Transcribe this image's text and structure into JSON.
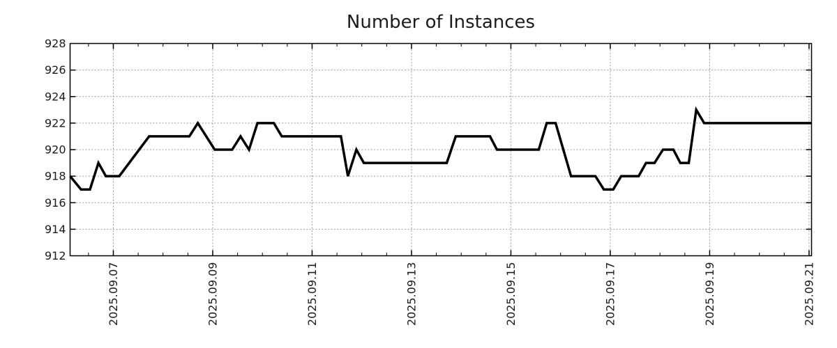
{
  "chart_data": {
    "type": "line",
    "title": "Number of Instances",
    "legend": "none",
    "grid": {
      "show": true,
      "color": "#9a9a9a",
      "style": "dashed"
    },
    "line_color": "#000000",
    "line_width": 3.5,
    "x_axis": {
      "unit": "date (day of 2025.09, fractional)",
      "range": [
        6.13,
        21.05
      ],
      "minor_tick_step": 0.5,
      "major_ticks": [
        {
          "value": 7,
          "label": "2025.09.07"
        },
        {
          "value": 9,
          "label": "2025.09.09"
        },
        {
          "value": 11,
          "label": "2025.09.11"
        },
        {
          "value": 13,
          "label": "2025.09.13"
        },
        {
          "value": 15,
          "label": "2025.09.15"
        },
        {
          "value": 17,
          "label": "2025.09.17"
        },
        {
          "value": 19,
          "label": "2025.09.19"
        },
        {
          "value": 21,
          "label": "2025.09.21"
        }
      ]
    },
    "y_axis": {
      "range": [
        912,
        928
      ],
      "major_ticks": [
        {
          "value": 912,
          "label": "912"
        },
        {
          "value": 914,
          "label": "914"
        },
        {
          "value": 916,
          "label": "916"
        },
        {
          "value": 918,
          "label": "918"
        },
        {
          "value": 920,
          "label": "920"
        },
        {
          "value": 922,
          "label": "922"
        },
        {
          "value": 924,
          "label": "924"
        },
        {
          "value": 926,
          "label": "926"
        },
        {
          "value": 928,
          "label": "928"
        }
      ]
    },
    "series": [
      {
        "name": "Number of Instances",
        "color": "#000000",
        "points": [
          [
            6.13,
            918
          ],
          [
            6.35,
            917
          ],
          [
            6.53,
            917
          ],
          [
            6.7,
            919
          ],
          [
            6.85,
            918
          ],
          [
            7.12,
            918
          ],
          [
            7.72,
            921
          ],
          [
            8.53,
            921
          ],
          [
            8.7,
            922
          ],
          [
            9.04,
            920
          ],
          [
            9.39,
            920
          ],
          [
            9.56,
            921
          ],
          [
            9.73,
            920
          ],
          [
            9.9,
            922
          ],
          [
            10.23,
            922
          ],
          [
            10.39,
            921
          ],
          [
            11.58,
            921
          ],
          [
            11.72,
            918
          ],
          [
            11.89,
            920
          ],
          [
            12.04,
            919
          ],
          [
            13.71,
            919
          ],
          [
            13.89,
            921
          ],
          [
            14.58,
            921
          ],
          [
            14.72,
            920
          ],
          [
            15.56,
            920
          ],
          [
            15.72,
            922
          ],
          [
            15.9,
            922
          ],
          [
            16.21,
            918
          ],
          [
            16.7,
            918
          ],
          [
            16.87,
            917
          ],
          [
            17.06,
            917
          ],
          [
            17.22,
            918
          ],
          [
            17.57,
            918
          ],
          [
            17.72,
            919
          ],
          [
            17.89,
            919
          ],
          [
            18.06,
            920
          ],
          [
            18.27,
            920
          ],
          [
            18.41,
            919
          ],
          [
            18.58,
            919
          ],
          [
            18.73,
            923
          ],
          [
            18.89,
            922
          ],
          [
            21.05,
            922
          ]
        ]
      }
    ]
  },
  "colors": {
    "background": "#ffffff",
    "axis": "#000000",
    "text": "#1c1c1c",
    "grid": "#9a9a9a",
    "series": "#000000"
  }
}
